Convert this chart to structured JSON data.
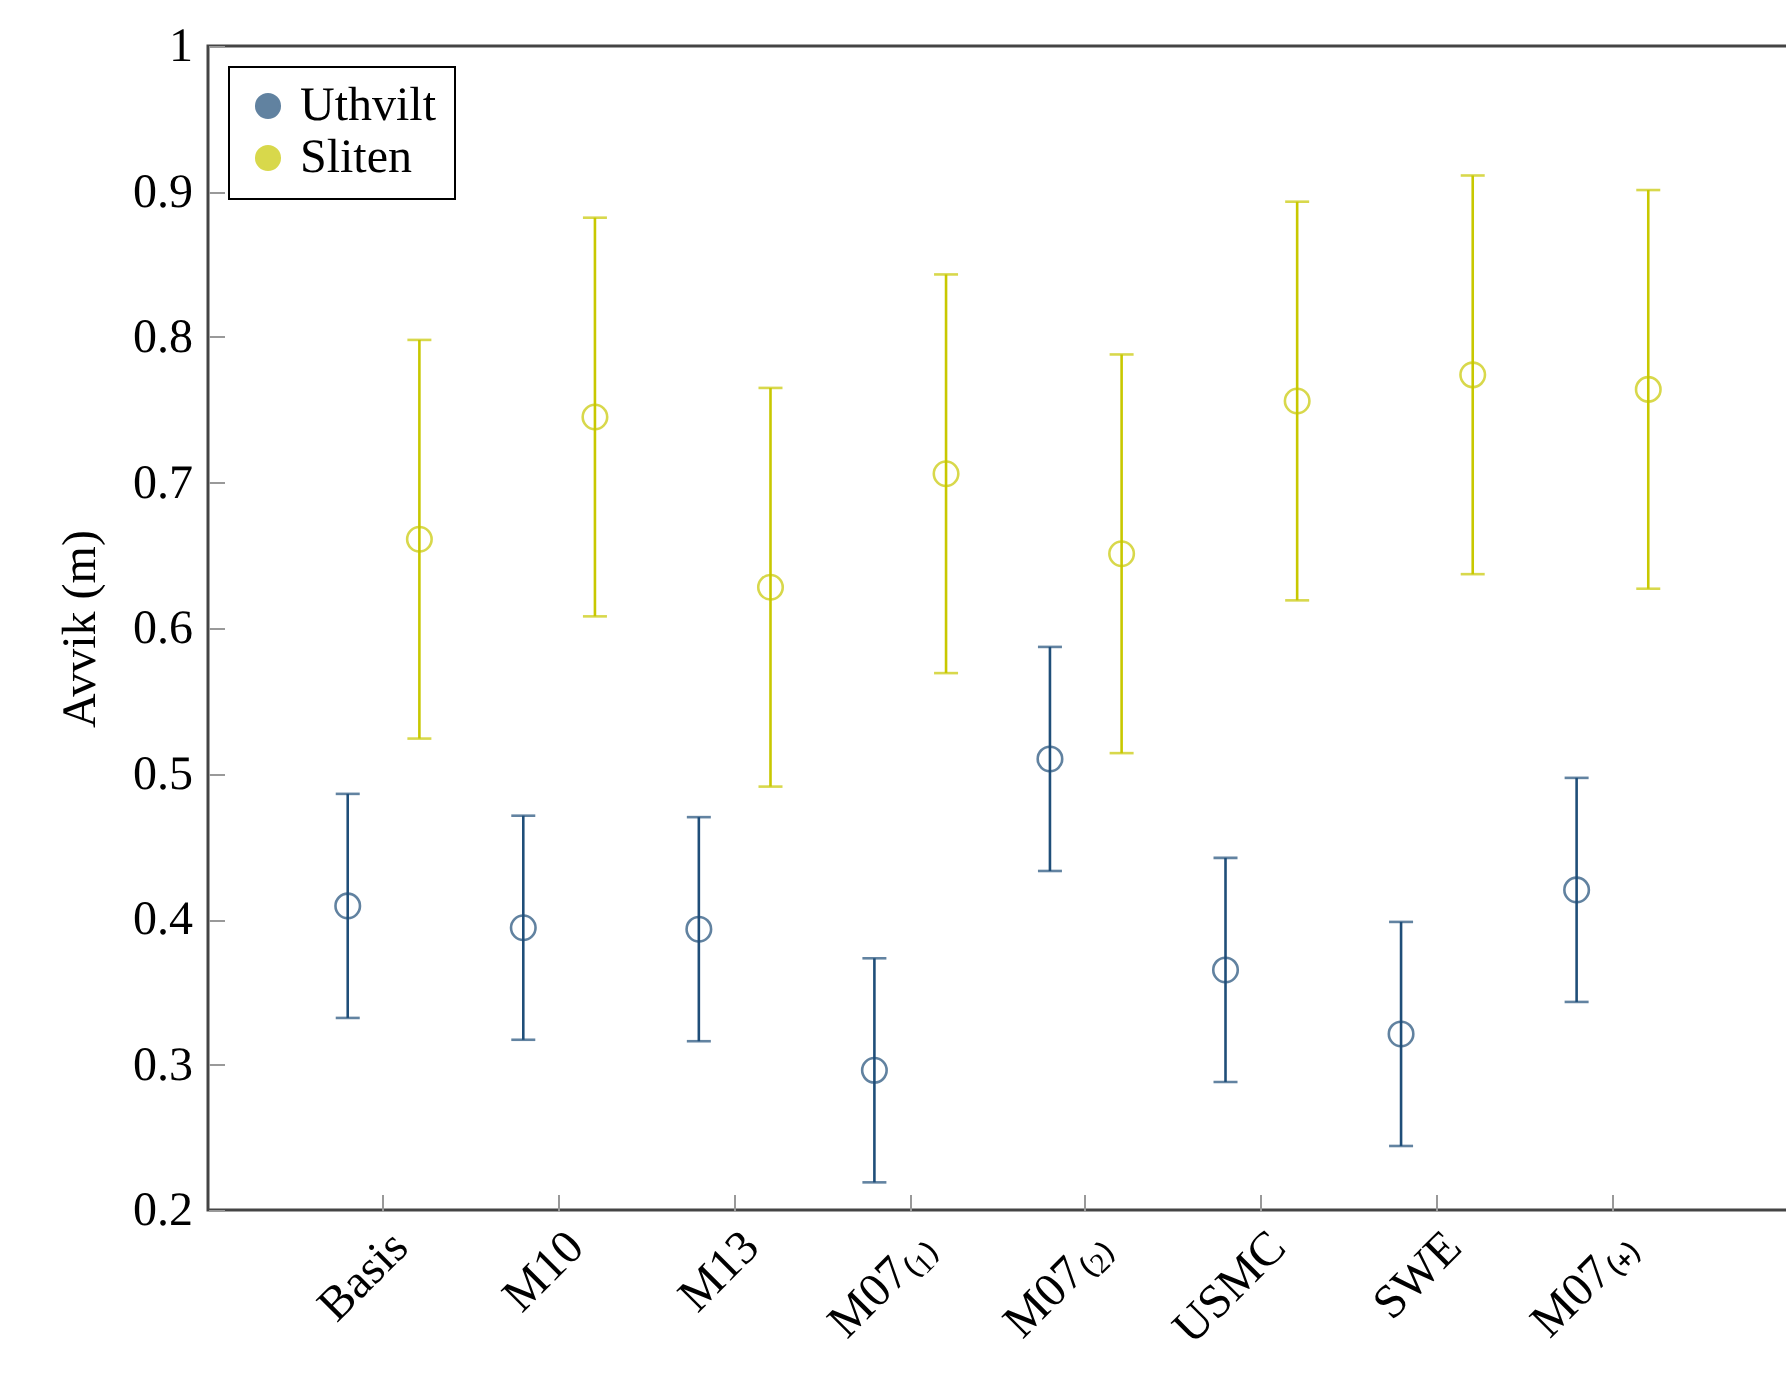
{
  "chart_data": {
    "type": "scatter",
    "ylabel": "Avvik (m)",
    "categories": [
      "Basis",
      "M10",
      "M13",
      "M07₍₁₎",
      "M07₍₂₎",
      "USMC",
      "SWE",
      "M07₍₊₎"
    ],
    "series": [
      {
        "name": "Uthvilt",
        "color": "#1f4e79",
        "values": [
          0.409,
          0.394,
          0.393,
          0.296,
          0.51,
          0.365,
          0.321,
          0.42
        ],
        "errors": [
          0.077,
          0.077,
          0.077,
          0.077,
          0.077,
          0.077,
          0.077,
          0.077
        ]
      },
      {
        "name": "Sliten",
        "color": "#c8c800",
        "values": [
          0.661,
          0.745,
          0.628,
          0.706,
          0.651,
          0.756,
          0.774,
          0.764
        ],
        "errors": [
          0.137,
          0.137,
          0.137,
          0.137,
          0.137,
          0.137,
          0.137,
          0.137
        ]
      }
    ],
    "ylim": [
      0.2,
      1
    ],
    "yticks": [
      0.2,
      0.3,
      0.4,
      0.5,
      0.6,
      0.7,
      0.8,
      0.9,
      1
    ],
    "marker": "circle",
    "legend": "top left",
    "grid": false
  }
}
